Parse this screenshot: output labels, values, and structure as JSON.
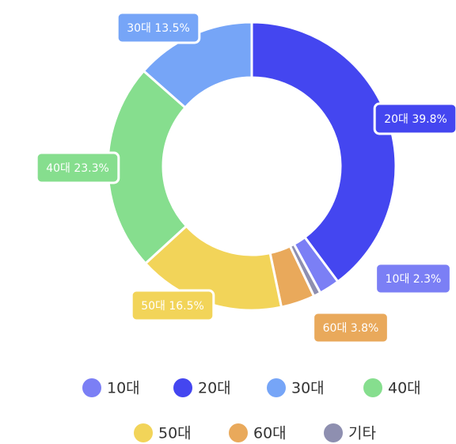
{
  "chart_data": {
    "type": "donut",
    "categories": [
      "20대",
      "10대",
      "기타",
      "60대",
      "50대",
      "40대",
      "30대"
    ],
    "values": [
      39.8,
      2.3,
      0.8,
      3.8,
      16.5,
      23.3,
      13.5
    ],
    "value_labels": [
      "20대 39.8%",
      "10대 2.3%",
      null,
      "60대 3.8%",
      "50대 16.5%",
      "40대 23.3%",
      "30대 13.5%"
    ],
    "colors": [
      "#4446f0",
      "#7b7ff5",
      "#8e8fb0",
      "#e9a95b",
      "#f2d459",
      "#86de8e",
      "#76a5f7"
    ],
    "legend": true
  }
}
